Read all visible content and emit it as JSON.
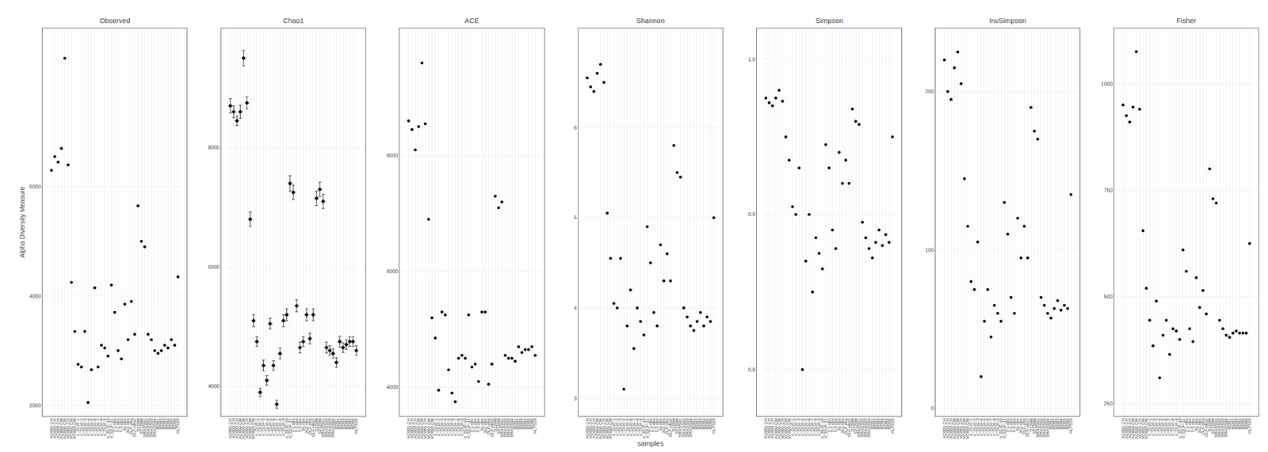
{
  "chart_data": [
    {
      "type": "scatter",
      "title": "Observed",
      "ylabel": "Alpha Diversity Measure",
      "marker": "circle",
      "color": "#000000",
      "grid": true,
      "categories": [
        "AC001.CH",
        "AC002.CH",
        "AC003.CH",
        "AC004.CM",
        "AC005.CM",
        "VC001.CH",
        "VC002.CM",
        "VC003.CM",
        "o_DLIF-1",
        "o_DLIF-2",
        "o_DLIF-3",
        "o_DLIF-4",
        "o_DLIF-5",
        "o_DLIF-6",
        "o_DLIF-7",
        "o_DLIF-8",
        "o_DLIF-9",
        "o_DLIF-10",
        "o_DLIF-11",
        "T-1.obs",
        "T-2.obs",
        "T-3.obs",
        "3o.obs",
        "3o2.obs",
        "DLF-obs",
        "DLF-obs2",
        "S120M",
        "S2120M",
        "SRASS01",
        "SRASS02",
        "SRASS03",
        "SRASS04",
        "BDB1",
        "BDB2",
        "BDB3",
        "BDB4",
        "BDB5",
        "BDB6",
        "HLTS29"
      ],
      "values": [
        6300,
        6550,
        6450,
        6700,
        8350,
        6400,
        4250,
        3350,
        2750,
        2700,
        3350,
        2050,
        2650,
        4150,
        2700,
        3100,
        3050,
        2900,
        4200,
        3700,
        3000,
        2850,
        3850,
        3200,
        3900,
        3300,
        5650,
        5000,
        4900,
        3300,
        3200,
        3000,
        2950,
        3000,
        3100,
        3050,
        3200,
        3100,
        4350
      ],
      "ylim": [
        1800,
        8900
      ],
      "yticks": [
        2000,
        4000,
        6000
      ]
    },
    {
      "type": "scatter",
      "title": "Chao1",
      "marker": "diamond",
      "color": "#000000",
      "grid": true,
      "categories": [
        "AC001.CH",
        "AC002.CH",
        "AC003.CH",
        "AC004.CM",
        "AC005.CM",
        "VC001.CH",
        "VC002.CM",
        "VC003.CM",
        "o_DLIF-1",
        "o_DLIF-2",
        "o_DLIF-3",
        "o_DLIF-4",
        "o_DLIF-5",
        "o_DLIF-6",
        "o_DLIF-7",
        "o_DLIF-8",
        "o_DLIF-9",
        "o_DLIF-10",
        "o_DLIF-11",
        "T-1.obs",
        "T-2.obs",
        "T-3.obs",
        "3o.obs",
        "3o2.obs",
        "DLF-obs",
        "DLF-obs2",
        "S120M",
        "S2120M",
        "SRASS01",
        "SRASS02",
        "SRASS03",
        "SRASS04",
        "BDB1",
        "BDB2",
        "BDB3",
        "BDB4",
        "BDB5",
        "BDB6",
        "HLTS29"
      ],
      "values": [
        8700,
        8600,
        8450,
        8600,
        9500,
        8750,
        6800,
        5100,
        4750,
        3900,
        4350,
        4100,
        5050,
        4350,
        3700,
        4550,
        5100,
        5200,
        7400,
        7250,
        5350,
        4650,
        4750,
        5200,
        4800,
        5200,
        7150,
        7300,
        7100,
        4650,
        4600,
        4550,
        4400,
        4750,
        4650,
        4700,
        4750,
        4750,
        4600
      ],
      "errors": [
        120,
        100,
        80,
        110,
        130,
        100,
        120,
        100,
        80,
        70,
        90,
        80,
        90,
        80,
        70,
        90,
        100,
        100,
        130,
        120,
        100,
        90,
        80,
        100,
        90,
        100,
        120,
        120,
        120,
        90,
        80,
        80,
        80,
        90,
        80,
        80,
        80,
        80,
        80
      ],
      "ylim": [
        3500,
        10000
      ],
      "yticks": [
        4000,
        6000,
        8000
      ]
    },
    {
      "type": "scatter",
      "title": "ACE",
      "marker": "circle",
      "color": "#000000",
      "grid": true,
      "categories": [
        "AC001.CH",
        "AC002.CH",
        "AC003.CH",
        "AC004.CM",
        "AC005.CM",
        "VC001.CH",
        "VC002.CM",
        "VC003.CM",
        "o_DLIF-1",
        "o_DLIF-2",
        "o_DLIF-3",
        "o_DLIF-4",
        "o_DLIF-5",
        "o_DLIF-6",
        "o_DLIF-7",
        "o_DLIF-8",
        "o_DLIF-9",
        "o_DLIF-10",
        "o_DLIF-11",
        "T-1.obs",
        "T-2.obs",
        "T-3.obs",
        "3o.obs",
        "3o2.obs",
        "DLF-obs",
        "DLF-obs2",
        "S120M",
        "S2120M",
        "SRASS01",
        "SRASS02",
        "SRASS03",
        "SRASS04",
        "BDB1",
        "BDB2",
        "BDB3",
        "BDB4",
        "BDB5",
        "BDB6",
        "HLTS29"
      ],
      "values": [
        8600,
        8450,
        8100,
        8500,
        9600,
        8550,
        6900,
        5200,
        4850,
        3950,
        5300,
        5250,
        4300,
        3900,
        3750,
        4500,
        4550,
        4500,
        5250,
        4350,
        4400,
        4100,
        5300,
        5300,
        4050,
        4400,
        7300,
        7100,
        7200,
        4550,
        4500,
        4500,
        4450,
        4700,
        4600,
        4650,
        4650,
        4700,
        4550
      ],
      "ylim": [
        3500,
        10200
      ],
      "yticks": [
        4000,
        6000,
        8000
      ]
    },
    {
      "type": "scatter",
      "title": "Shannon",
      "xlabel": "samples",
      "marker": "circle",
      "color": "#000000",
      "grid": true,
      "categories": [
        "AC001.CH",
        "AC002.CH",
        "AC003.CH",
        "AC004.CM",
        "AC005.CM",
        "VC001.CH",
        "VC002.CM",
        "VC003.CM",
        "o_DLIF-1",
        "o_DLIF-2",
        "o_DLIF-3",
        "o_DLIF-4",
        "o_DLIF-5",
        "o_DLIF-6",
        "o_DLIF-7",
        "o_DLIF-8",
        "o_DLIF-9",
        "o_DLIF-10",
        "o_DLIF-11",
        "T-1.obs",
        "T-2.obs",
        "T-3.obs",
        "3o.obs",
        "3o2.obs",
        "DLF-obs",
        "DLF-obs2",
        "S120M",
        "S2120M",
        "SRASS01",
        "SRASS02",
        "SRASS03",
        "SRASS04",
        "BDB1",
        "BDB2",
        "BDB3",
        "BDB4",
        "BDB5",
        "BDB6",
        "HLTS29"
      ],
      "values": [
        6.55,
        6.45,
        6.4,
        6.6,
        6.7,
        6.5,
        5.05,
        4.55,
        4.05,
        4.0,
        4.55,
        3.1,
        3.8,
        4.2,
        3.55,
        4.0,
        3.85,
        3.7,
        4.9,
        4.5,
        3.95,
        3.8,
        4.7,
        4.3,
        4.6,
        4.3,
        5.8,
        5.5,
        5.45,
        4.0,
        3.9,
        3.8,
        3.75,
        3.85,
        3.95,
        3.8,
        3.9,
        3.85,
        5.0
      ],
      "ylim": [
        2.8,
        7.1
      ],
      "yticks": [
        3,
        4,
        5,
        6
      ]
    },
    {
      "type": "scatter",
      "title": "Simpson",
      "marker": "circle",
      "color": "#000000",
      "grid": true,
      "categories": [
        "AC001.CH",
        "AC002.CH",
        "AC003.CH",
        "AC004.CM",
        "AC005.CM",
        "VC001.CH",
        "VC002.CM",
        "VC003.CM",
        "o_DLIF-1",
        "o_DLIF-2",
        "o_DLIF-3",
        "o_DLIF-4",
        "o_DLIF-5",
        "o_DLIF-6",
        "o_DLIF-7",
        "o_DLIF-8",
        "o_DLIF-9",
        "o_DLIF-10",
        "o_DLIF-11",
        "T-1.obs",
        "T-2.obs",
        "T-3.obs",
        "3o.obs",
        "3o2.obs",
        "DLF-obs",
        "DLF-obs2",
        "S120M",
        "S2120M",
        "SRASS01",
        "SRASS02",
        "SRASS03",
        "SRASS04",
        "BDB1",
        "BDB2",
        "BDB3",
        "BDB4",
        "BDB5",
        "BDB6",
        "HLTS29"
      ],
      "values": [
        0.975,
        0.972,
        0.97,
        0.975,
        0.98,
        0.973,
        0.95,
        0.935,
        0.905,
        0.9,
        0.93,
        0.8,
        0.87,
        0.9,
        0.85,
        0.885,
        0.875,
        0.865,
        0.945,
        0.93,
        0.89,
        0.878,
        0.94,
        0.92,
        0.935,
        0.92,
        0.968,
        0.96,
        0.958,
        0.895,
        0.885,
        0.878,
        0.872,
        0.882,
        0.89,
        0.88,
        0.887,
        0.882,
        0.95
      ],
      "ylim": [
        0.77,
        1.02
      ],
      "yticks": [
        0.8,
        0.9,
        {
          "value": 1.0,
          "label": "1.0"
        }
      ]
    },
    {
      "type": "scatter",
      "title": "InvSimpson",
      "marker": "circle",
      "color": "#000000",
      "grid": true,
      "categories": [
        "AC001.CH",
        "AC002.CH",
        "AC003.CH",
        "AC004.CM",
        "AC005.CM",
        "VC001.CH",
        "VC002.CM",
        "VC003.CM",
        "o_DLIF-1",
        "o_DLIF-2",
        "o_DLIF-3",
        "o_DLIF-4",
        "o_DLIF-5",
        "o_DLIF-6",
        "o_DLIF-7",
        "o_DLIF-8",
        "o_DLIF-9",
        "o_DLIF-10",
        "o_DLIF-11",
        "T-1.obs",
        "T-2.obs",
        "T-3.obs",
        "3o.obs",
        "3o2.obs",
        "DLF-obs",
        "DLF-obs2",
        "S120M",
        "S2120M",
        "SRASS01",
        "SRASS02",
        "SRASS03",
        "SRASS04",
        "BDB1",
        "BDB2",
        "BDB3",
        "BDB4",
        "BDB5",
        "BDB6",
        "HLTS29"
      ],
      "values": [
        220,
        200,
        195,
        215,
        225,
        205,
        145,
        115,
        80,
        75,
        105,
        20,
        55,
        75,
        45,
        65,
        60,
        55,
        130,
        110,
        70,
        60,
        120,
        95,
        115,
        95,
        190,
        175,
        170,
        70,
        65,
        60,
        57,
        63,
        68,
        62,
        65,
        63,
        135
      ],
      "ylim": [
        -5,
        240
      ],
      "yticks": [
        0,
        100,
        200
      ]
    },
    {
      "type": "scatter",
      "title": "Fisher",
      "marker": "circle",
      "color": "#000000",
      "grid": true,
      "categories": [
        "AC001.CH",
        "AC002.CH",
        "AC003.CH",
        "AC004.CM",
        "AC005.CM",
        "VC001.CH",
        "VC002.CM",
        "VC003.CM",
        "o_DLIF-1",
        "o_DLIF-2",
        "o_DLIF-3",
        "o_DLIF-4",
        "o_DLIF-5",
        "o_DLIF-6",
        "o_DLIF-7",
        "o_DLIF-8",
        "o_DLIF-9",
        "o_DLIF-10",
        "o_DLIF-11",
        "T-1.obs",
        "T-2.obs",
        "T-3.obs",
        "3o.obs",
        "3o2.obs",
        "DLF-obs",
        "DLF-obs2",
        "S120M",
        "S2120M",
        "SRASS01",
        "SRASS02",
        "SRASS03",
        "SRASS04",
        "BDB1",
        "BDB2",
        "BDB3",
        "BDB4",
        "BDB5",
        "BDB6",
        "HLTS29"
      ],
      "values": [
        950,
        925,
        910,
        945,
        1075,
        940,
        655,
        520,
        445,
        385,
        490,
        310,
        410,
        445,
        365,
        425,
        420,
        400,
        610,
        560,
        425,
        395,
        545,
        475,
        515,
        460,
        800,
        730,
        720,
        445,
        425,
        410,
        405,
        415,
        420,
        415,
        415,
        415,
        625
      ],
      "ylim": [
        220,
        1130
      ],
      "yticks": [
        250,
        500,
        750,
        1000
      ]
    }
  ]
}
